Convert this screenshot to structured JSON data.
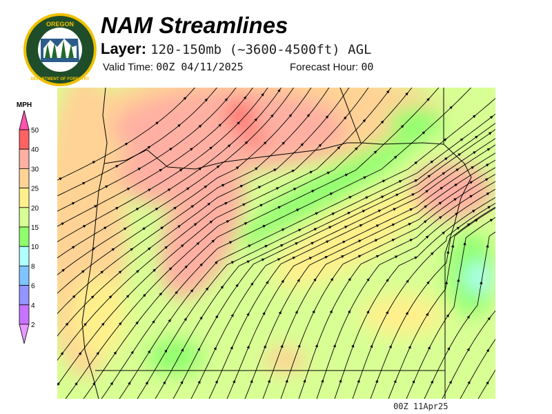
{
  "header": {
    "title": "NAM Streamlines",
    "layer_label": "Layer:",
    "layer_value": "120-150mb (~3600-4500ft) AGL",
    "valid_label": "Valid Time:",
    "valid_value": "00Z 04/11/2025",
    "forecast_label": "Forecast Hour:",
    "forecast_value": "00"
  },
  "logo": {
    "text_top": "OREGON",
    "text_bottom": "DEPARTMENT OF FORESTRY"
  },
  "legend": {
    "unit": "MPH",
    "labels": [
      "50",
      "40",
      "30",
      "25",
      "20",
      "15",
      "10",
      "8",
      "6",
      "4",
      "2"
    ],
    "colors": [
      "#ff6262",
      "#ffb0a2",
      "#ffd395",
      "#fff08c",
      "#d8ff94",
      "#8fff6e",
      "#b0ffff",
      "#80c4ff",
      "#9394ff",
      "#c673ff"
    ],
    "over_color": "#ff55b0",
    "under_color": "#e898ff"
  },
  "footer": {
    "timestamp": "00Z 11Apr25"
  }
}
